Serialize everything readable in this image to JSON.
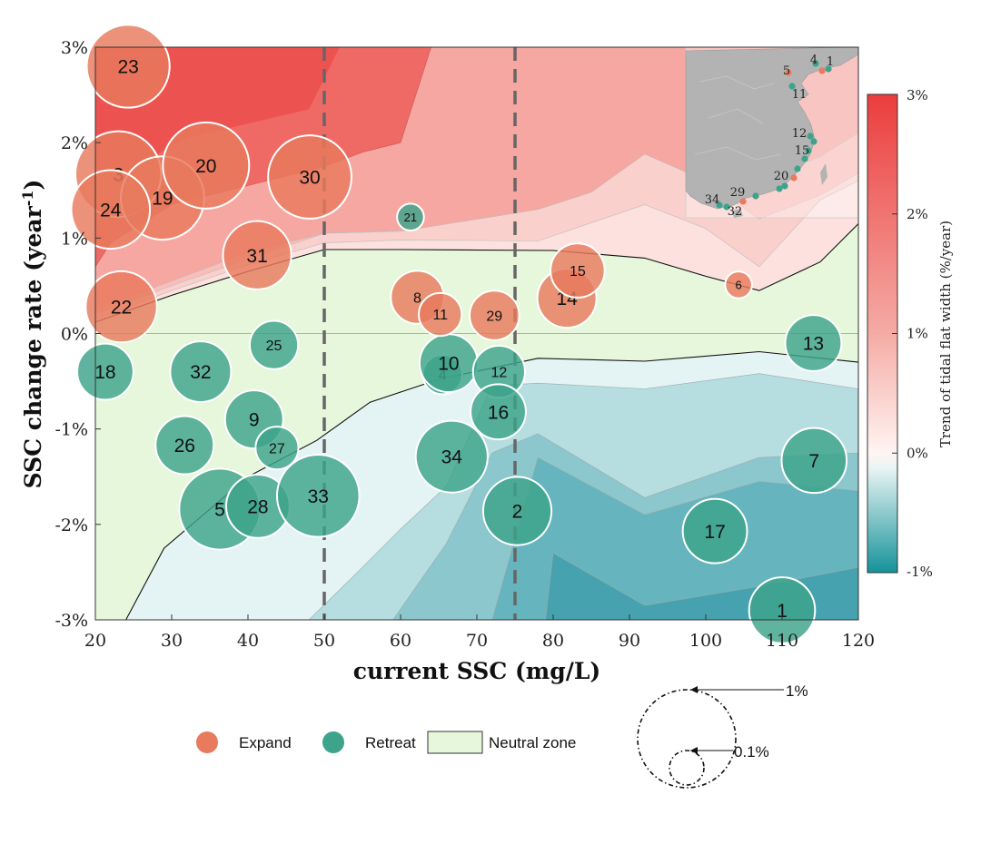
{
  "chart_data": {
    "type": "scatter",
    "subtype": "bubble-over-filled-contour",
    "xlabel": "current SSC (mg/L)",
    "ylabel": "SSC change rate (year",
    "ylabel_superscript": "-1",
    "ylabel_suffix": ")",
    "xlim": [
      20,
      120
    ],
    "ylim": [
      -3,
      3
    ],
    "x_ticks": [
      "20",
      "30",
      "40",
      "50",
      "60",
      "70",
      "80",
      "90",
      "100",
      "110",
      "120"
    ],
    "y_ticks": [
      "-3%",
      "-2%",
      "-1%",
      "0%",
      "1%",
      "2%",
      "3%"
    ],
    "reference_lines_x": [
      50,
      75
    ],
    "colorbar": {
      "title": "Trend of tidal flat width (%/year)",
      "ticks": [
        "3%",
        "2%",
        "1%",
        "0%",
        "-1%"
      ],
      "range": [
        -1,
        3
      ]
    },
    "colors": {
      "expand": "#E87A5D",
      "retreat": "#3DA38A",
      "neutral": "#E6F7DC"
    },
    "legend": {
      "expand": "Expand",
      "retreat": "Retreat",
      "neutral": "Neutral zone"
    },
    "size_legend": {
      "large": "1%",
      "small": "0.1%"
    },
    "neutral_upper": [
      [
        20,
        0.12
      ],
      [
        30,
        0.4
      ],
      [
        40,
        0.65
      ],
      [
        50,
        0.88
      ],
      [
        60,
        0.88
      ],
      [
        80,
        0.87
      ],
      [
        92,
        0.79
      ],
      [
        100,
        0.6
      ],
      [
        107,
        0.45
      ],
      [
        115,
        0.75
      ],
      [
        120,
        1.15
      ]
    ],
    "neutral_lower": [
      [
        24,
        -3
      ],
      [
        29,
        -2.25
      ],
      [
        40,
        -1.5
      ],
      [
        49,
        -1.12
      ],
      [
        56,
        -0.72
      ],
      [
        65,
        -0.48
      ],
      [
        78,
        -0.26
      ],
      [
        92,
        -0.29
      ],
      [
        107,
        -0.19
      ],
      [
        120,
        -0.3
      ]
    ],
    "pos_contours": [
      [
        [
          20,
          0.7
        ],
        [
          22,
          0.95
        ],
        [
          30,
          1.35
        ],
        [
          40,
          1.55
        ],
        [
          50,
          1.75
        ],
        [
          55,
          1.9
        ],
        [
          60,
          2.0
        ],
        [
          64,
          3.0
        ]
      ],
      [
        [
          20,
          0.25
        ],
        [
          30,
          0.55
        ],
        [
          40,
          0.85
        ],
        [
          50,
          1.05
        ],
        [
          60,
          1.08
        ],
        [
          78,
          1.1
        ],
        [
          85,
          1.3
        ],
        [
          92,
          1.5
        ],
        [
          100,
          1.55
        ],
        [
          107,
          1.6
        ],
        [
          115,
          1.85
        ],
        [
          120,
          2.1
        ]
      ],
      [
        [
          20,
          0.2
        ],
        [
          30,
          0.5
        ],
        [
          40,
          0.78
        ],
        [
          50,
          1.05
        ],
        [
          60,
          1.07
        ],
        [
          78,
          1.3
        ],
        [
          85,
          1.48
        ],
        [
          92,
          1.88
        ],
        [
          100,
          1.6
        ],
        [
          107,
          1.2
        ],
        [
          115,
          1.45
        ],
        [
          120,
          1.68
        ]
      ],
      [
        [
          20,
          0.15
        ],
        [
          30,
          0.45
        ],
        [
          40,
          0.72
        ],
        [
          50,
          0.95
        ],
        [
          60,
          0.98
        ],
        [
          78,
          0.97
        ],
        [
          92,
          1.35
        ],
        [
          100,
          1.1
        ],
        [
          107,
          0.7
        ],
        [
          115,
          1.4
        ],
        [
          120,
          1.6
        ]
      ]
    ],
    "neg_contours": [
      [
        [
          48,
          -3
        ],
        [
          55,
          -2.45
        ],
        [
          60,
          -2.05
        ],
        [
          66,
          -1.6
        ],
        [
          72,
          -0.55
        ],
        [
          78,
          -0.52
        ],
        [
          92,
          -0.58
        ],
        [
          107,
          -0.42
        ],
        [
          120,
          -0.58
        ]
      ],
      [
        [
          59,
          -3
        ],
        [
          66,
          -2.2
        ],
        [
          72,
          -1.25
        ],
        [
          78,
          -1.05
        ],
        [
          92,
          -1.72
        ],
        [
          107,
          -1.3
        ],
        [
          120,
          -1.25
        ]
      ],
      [
        [
          72,
          -3
        ],
        [
          78,
          -1.3
        ],
        [
          92,
          -1.9
        ],
        [
          107,
          -1.55
        ],
        [
          120,
          -1.65
        ]
      ],
      [
        [
          79,
          -3
        ],
        [
          80,
          -2.3
        ],
        [
          92,
          -2.85
        ],
        [
          107,
          -2.65
        ],
        [
          120,
          -2.45
        ]
      ]
    ],
    "points": [
      {
        "id": "1",
        "x": 110.0,
        "y": -2.9,
        "group": "retreat",
        "trend": -0.45,
        "size": 0.3
      },
      {
        "id": "2",
        "x": 75.3,
        "y": -1.86,
        "group": "retreat",
        "trend": -0.5,
        "size": 0.33
      },
      {
        "id": "3",
        "x": 23.0,
        "y": 1.67,
        "group": "expand",
        "trend": 1.2,
        "size": 0.6
      },
      {
        "id": "4",
        "x": 65.5,
        "y": -0.43,
        "group": "retreat",
        "trend": -0.05,
        "size": 0.06
      },
      {
        "id": "5",
        "x": 36.3,
        "y": -1.84,
        "group": "retreat",
        "trend": -0.4,
        "size": 0.52
      },
      {
        "id": "6",
        "x": 104.3,
        "y": 0.51,
        "group": "expand",
        "trend": 0.15,
        "size": 0.01
      },
      {
        "id": "7",
        "x": 114.2,
        "y": -1.33,
        "group": "retreat",
        "trend": -0.3,
        "size": 0.29
      },
      {
        "id": "8",
        "x": 62.2,
        "y": 0.38,
        "group": "expand",
        "trend": 0.7,
        "size": 0.16
      },
      {
        "id": "9",
        "x": 40.8,
        "y": -0.9,
        "group": "retreat",
        "trend": -0.2,
        "size": 0.21
      },
      {
        "id": "10",
        "x": 66.3,
        "y": -0.31,
        "group": "retreat",
        "trend": -0.1,
        "size": 0.21
      },
      {
        "id": "11",
        "x": 65.2,
        "y": 0.2,
        "group": "expand",
        "trend": 0.55,
        "size": 0.08
      },
      {
        "id": "12",
        "x": 72.9,
        "y": -0.4,
        "group": "retreat",
        "trend": -0.15,
        "size": 0.15
      },
      {
        "id": "13",
        "x": 114.1,
        "y": -0.1,
        "group": "retreat",
        "trend": -0.25,
        "size": 0.19
      },
      {
        "id": "14",
        "x": 81.8,
        "y": 0.37,
        "group": "expand",
        "trend": 0.6,
        "size": 0.22
      },
      {
        "id": "15",
        "x": 83.2,
        "y": 0.66,
        "group": "expand",
        "trend": 0.65,
        "size": 0.17
      },
      {
        "id": "16",
        "x": 72.8,
        "y": -0.82,
        "group": "retreat",
        "trend": -0.2,
        "size": 0.18
      },
      {
        "id": "17",
        "x": 101.2,
        "y": -2.07,
        "group": "retreat",
        "trend": -0.45,
        "size": 0.28
      },
      {
        "id": "18",
        "x": 21.3,
        "y": -0.4,
        "group": "retreat",
        "trend": -0.2,
        "size": 0.19
      },
      {
        "id": "19",
        "x": 28.8,
        "y": 1.42,
        "group": "expand",
        "trend": 1.3,
        "size": 0.56
      },
      {
        "id": "20",
        "x": 34.5,
        "y": 1.76,
        "group": "expand",
        "trend": 1.4,
        "size": 0.61
      },
      {
        "id": "21",
        "x": 61.3,
        "y": 1.22,
        "group": "retreat",
        "trend": -0.05,
        "size": 0.01
      },
      {
        "id": "22",
        "x": 23.4,
        "y": 0.28,
        "group": "expand",
        "trend": 0.9,
        "size": 0.37
      },
      {
        "id": "23",
        "x": 24.3,
        "y": 2.8,
        "group": "expand",
        "trend": 1.6,
        "size": 0.55
      },
      {
        "id": "24",
        "x": 22.0,
        "y": 1.3,
        "group": "expand",
        "trend": 1.1,
        "size": 0.48
      },
      {
        "id": "25",
        "x": 43.4,
        "y": -0.12,
        "group": "retreat",
        "trend": -0.1,
        "size": 0.12
      },
      {
        "id": "26",
        "x": 31.7,
        "y": -1.17,
        "group": "retreat",
        "trend": -0.2,
        "size": 0.21
      },
      {
        "id": "27",
        "x": 43.8,
        "y": -1.2,
        "group": "retreat",
        "trend": -0.1,
        "size": 0.08
      },
      {
        "id": "28",
        "x": 41.3,
        "y": -1.81,
        "group": "retreat",
        "trend": -0.35,
        "size": 0.27
      },
      {
        "id": "29",
        "x": 72.3,
        "y": 0.19,
        "group": "expand",
        "trend": 0.6,
        "size": 0.13
      },
      {
        "id": "30",
        "x": 48.1,
        "y": 1.64,
        "group": "expand",
        "trend": 1.2,
        "size": 0.56
      },
      {
        "id": "31",
        "x": 41.2,
        "y": 0.82,
        "group": "expand",
        "trend": 0.9,
        "size": 0.33
      },
      {
        "id": "32",
        "x": 33.8,
        "y": -0.4,
        "group": "retreat",
        "trend": -0.2,
        "size": 0.24
      },
      {
        "id": "33",
        "x": 49.2,
        "y": -1.7,
        "group": "retreat",
        "trend": -0.4,
        "size": 0.54
      },
      {
        "id": "34",
        "x": 66.7,
        "y": -1.29,
        "group": "retreat",
        "trend": -0.3,
        "size": 0.38
      }
    ],
    "inset_map_labels": [
      "4",
      "1",
      "5",
      "11",
      "12",
      "15",
      "20",
      "29",
      "34",
      "32"
    ]
  }
}
